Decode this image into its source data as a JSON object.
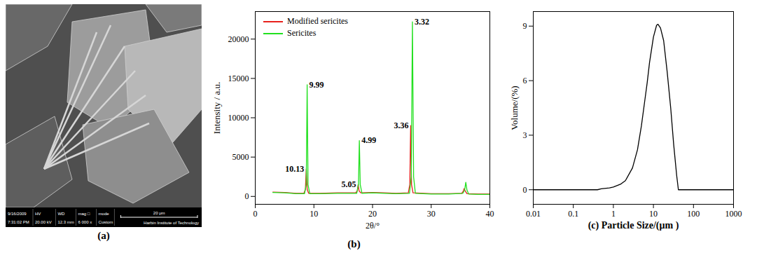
{
  "chart_data": [
    {
      "type": "image",
      "label": "(a)",
      "info_bar": {
        "columns": [
          {
            "head": "9/16/2009",
            "value": "7:31:02 PM"
          },
          {
            "head": "HV",
            "value": "20.00 kV"
          },
          {
            "head": "WD",
            "value": "12.3 mm"
          },
          {
            "head": "mag □",
            "value": "6 000 x"
          },
          {
            "head": "mode",
            "value": "Custom"
          }
        ],
        "scale_bar": "20 μm",
        "institution": "Harbin Institute of Technology"
      }
    },
    {
      "type": "line",
      "label": "(b)",
      "x_label": "2θ/°",
      "y_label": "Intensity / a.u.",
      "xlim": [
        0,
        40
      ],
      "xticks": [
        0,
        10,
        20,
        30,
        40
      ],
      "ylim": [
        -1000,
        23500
      ],
      "yticks": [
        0,
        5000,
        10000,
        15000,
        20000
      ],
      "grid": false,
      "legend": "upper left",
      "series": [
        {
          "name": "Modified sericites",
          "color": "#e8211c",
          "x": [
            3,
            5,
            7,
            8.3,
            8.55,
            8.7,
            8.85,
            9.1,
            11,
            14,
            17.1,
            17.4,
            17.55,
            17.7,
            18,
            20,
            22,
            24,
            26.1,
            26.35,
            26.5,
            26.65,
            26.9,
            30,
            33,
            35.2,
            35.5,
            35.6,
            35.8,
            36.1,
            38,
            40
          ],
          "values": [
            550,
            500,
            400,
            400,
            900,
            3500,
            900,
            400,
            400,
            450,
            450,
            700,
            1500,
            700,
            450,
            500,
            450,
            400,
            450,
            1500,
            9000,
            1500,
            450,
            350,
            350,
            400,
            700,
            1000,
            700,
            350,
            300,
            300
          ]
        },
        {
          "name": "Sericites",
          "color": "#22e01f",
          "x": [
            3,
            5,
            7,
            8.4,
            8.7,
            8.85,
            9.0,
            9.3,
            11,
            14,
            17.3,
            17.6,
            17.75,
            17.9,
            18.2,
            20,
            22,
            24,
            26.3,
            26.6,
            26.8,
            27.0,
            27.3,
            30,
            33,
            35.4,
            35.7,
            35.9,
            36.1,
            36.4,
            38,
            40
          ],
          "values": [
            500,
            450,
            350,
            350,
            1500,
            14200,
            1500,
            350,
            350,
            400,
            400,
            1500,
            7100,
            1500,
            400,
            450,
            400,
            350,
            400,
            2500,
            22200,
            2500,
            400,
            300,
            300,
            400,
            800,
            1800,
            800,
            300,
            250,
            250
          ]
        }
      ],
      "annotations": [
        {
          "text": "9.99",
          "x": 8.85,
          "y": 14200,
          "series": "Sericites"
        },
        {
          "text": "4.99",
          "x": 17.75,
          "y": 7100,
          "series": "Sericites"
        },
        {
          "text": "3.32",
          "x": 26.8,
          "y": 22200,
          "series": "Sericites"
        },
        {
          "text": "10.13",
          "x": 8.7,
          "y": 3500,
          "series": "Modified sericites"
        },
        {
          "text": "5.05",
          "x": 17.55,
          "y": 1500,
          "series": "Modified sericites"
        },
        {
          "text": "3.36",
          "x": 26.5,
          "y": 9000,
          "series": "Modified sericites"
        }
      ]
    },
    {
      "type": "line",
      "x_label": "(c) Particle Size/(μm )",
      "y_label": "Volume/(%)",
      "log": "x",
      "xlim": [
        0.01,
        1000
      ],
      "xticks": [
        0.01,
        0.1,
        1,
        10,
        100,
        1000
      ],
      "ylim": [
        -0.8,
        9.8
      ],
      "yticks": [
        0,
        3,
        6,
        9
      ],
      "grid": false,
      "color": "#000000",
      "x": [
        0.01,
        0.4,
        0.5,
        0.8,
        1,
        1.5,
        2,
        3,
        4,
        5,
        6,
        7,
        8,
        10,
        12,
        13,
        15,
        18,
        22,
        27,
        32,
        38,
        42,
        100,
        1000
      ],
      "values": [
        0,
        0,
        0.05,
        0.1,
        0.15,
        0.3,
        0.5,
        1.2,
        2.2,
        3.5,
        4.8,
        5.9,
        7,
        8.4,
        9.05,
        9.1,
        8.9,
        8.2,
        6.5,
        4.5,
        2.5,
        0.8,
        0,
        0,
        0
      ]
    }
  ]
}
